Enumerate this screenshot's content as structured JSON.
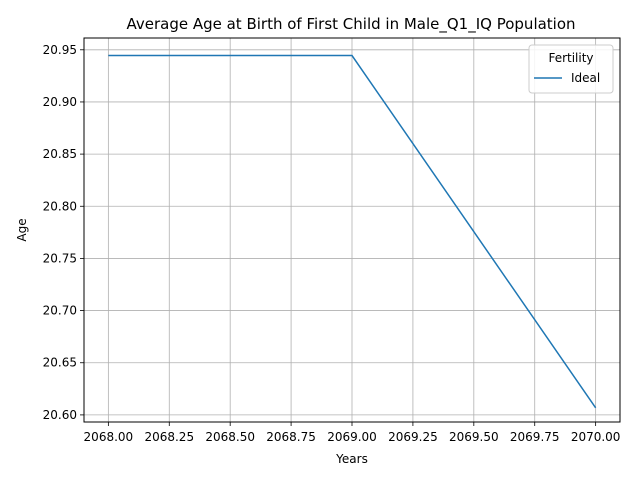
{
  "chart_data": {
    "type": "line",
    "title": "Average Age at Birth of First Child in Male_Q1_IQ Population",
    "xlabel": "Years",
    "ylabel": "Age",
    "xlim": [
      2067.9,
      2070.1
    ],
    "ylim": [
      20.5932,
      20.9613
    ],
    "x_ticks": [
      2068.0,
      2068.25,
      2068.5,
      2068.75,
      2069.0,
      2069.25,
      2069.5,
      2069.75,
      2070.0
    ],
    "x_tick_labels": [
      "2068.00",
      "2068.25",
      "2068.50",
      "2068.75",
      "2069.00",
      "2069.25",
      "2069.50",
      "2069.75",
      "2070.00"
    ],
    "y_ticks": [
      20.6,
      20.65,
      20.7,
      20.75,
      20.8,
      20.85,
      20.9,
      20.95
    ],
    "y_tick_labels": [
      "20.60",
      "20.65",
      "20.70",
      "20.75",
      "20.80",
      "20.85",
      "20.90",
      "20.95"
    ],
    "grid": true,
    "legend": {
      "title": "Fertility",
      "placement": "top-right"
    },
    "series": [
      {
        "name": "Ideal",
        "color": "#1f77b4",
        "x": [
          2068,
          2069,
          2070
        ],
        "y": [
          20.9445,
          20.9445,
          20.6068
        ]
      }
    ]
  }
}
